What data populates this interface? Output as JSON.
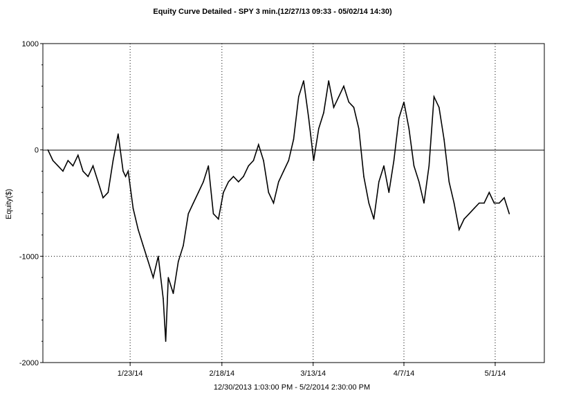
{
  "chart_data": {
    "type": "line",
    "title": "Equity Curve Detailed - SPY 3 min.(12/27/13 09:33 - 05/02/14 14:30)",
    "xlabel": "12/30/2013 1:03:00 PM - 5/2/2014 2:30:00 PM",
    "ylabel": "Equity($)",
    "ylim": [
      -2000,
      1000
    ],
    "yticks": [
      1000,
      0,
      -1000,
      -2000
    ],
    "yticklabels": [
      "1000",
      "0",
      "-1000",
      "-2000"
    ],
    "xticks": [
      0.174,
      0.357,
      0.539,
      0.72,
      0.902
    ],
    "xticklabels": [
      "1/23/14",
      "2/18/14",
      "3/13/14",
      "4/7/14",
      "5/1/14"
    ],
    "grid": "dotted at labeled ticks",
    "series": [
      {
        "color": "#000000",
        "x": [
          0.01,
          0.02,
          0.03,
          0.04,
          0.05,
          0.06,
          0.07,
          0.08,
          0.09,
          0.1,
          0.11,
          0.12,
          0.13,
          0.14,
          0.15,
          0.16,
          0.165,
          0.17,
          0.18,
          0.19,
          0.2,
          0.21,
          0.22,
          0.23,
          0.24,
          0.245,
          0.25,
          0.26,
          0.27,
          0.28,
          0.29,
          0.3,
          0.31,
          0.32,
          0.33,
          0.34,
          0.35,
          0.36,
          0.37,
          0.38,
          0.39,
          0.4,
          0.41,
          0.42,
          0.43,
          0.44,
          0.45,
          0.46,
          0.47,
          0.48,
          0.49,
          0.5,
          0.51,
          0.52,
          0.53,
          0.54,
          0.55,
          0.56,
          0.57,
          0.58,
          0.59,
          0.6,
          0.61,
          0.62,
          0.63,
          0.64,
          0.65,
          0.66,
          0.67,
          0.68,
          0.69,
          0.7,
          0.71,
          0.72,
          0.73,
          0.74,
          0.75,
          0.76,
          0.77,
          0.78,
          0.79,
          0.8,
          0.81,
          0.82,
          0.83,
          0.84,
          0.85,
          0.86,
          0.87,
          0.88,
          0.89,
          0.9,
          0.91,
          0.92,
          0.93
        ],
        "values": [
          0,
          -100,
          -150,
          -200,
          -100,
          -150,
          -50,
          -200,
          -250,
          -150,
          -300,
          -450,
          -400,
          -100,
          150,
          -200,
          -250,
          -200,
          -550,
          -750,
          -900,
          -1050,
          -1200,
          -1000,
          -1400,
          -1800,
          -1200,
          -1350,
          -1050,
          -900,
          -600,
          -500,
          -400,
          -300,
          -150,
          -600,
          -650,
          -400,
          -300,
          -250,
          -300,
          -250,
          -150,
          -100,
          50,
          -100,
          -400,
          -500,
          -300,
          -200,
          -100,
          100,
          500,
          650,
          300,
          -100,
          200,
          350,
          650,
          400,
          500,
          600,
          450,
          400,
          200,
          -250,
          -500,
          -650,
          -300,
          -150,
          -400,
          -100,
          300,
          450,
          200,
          -150,
          -300,
          -500,
          -150,
          500,
          400,
          100,
          -300,
          -500,
          -750,
          -650,
          -600,
          -550,
          -500,
          -500,
          -400,
          -500,
          -500,
          -450,
          -600
        ]
      }
    ]
  }
}
